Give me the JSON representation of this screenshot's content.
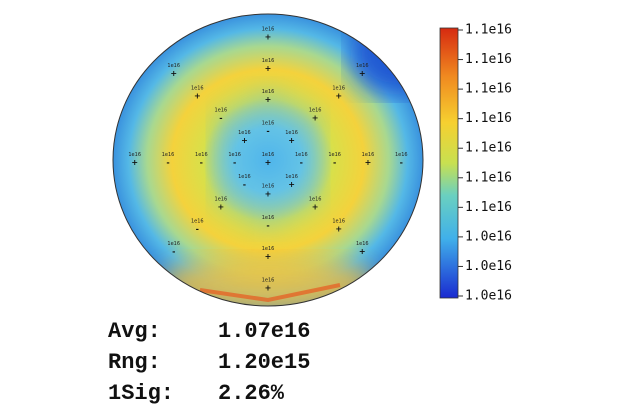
{
  "wafer": {
    "sites": [
      {
        "label": "1e16",
        "sign": "+"
      },
      {
        "label": "1e16",
        "sign": "-"
      },
      {
        "label": "1e16",
        "sign": "+"
      },
      {
        "label": "1e16",
        "sign": "-"
      },
      {
        "label": "1e16",
        "sign": "+"
      },
      {
        "label": "1e16",
        "sign": "-"
      },
      {
        "label": "1e16",
        "sign": "-"
      },
      {
        "label": "1e16",
        "sign": "+"
      },
      {
        "label": "1e16",
        "sign": "+"
      },
      {
        "label": "1e16",
        "sign": "-"
      },
      {
        "label": "1e16",
        "sign": "+"
      },
      {
        "label": "1e16",
        "sign": "+"
      },
      {
        "label": "1e16",
        "sign": "-"
      },
      {
        "label": "1e16",
        "sign": "-"
      },
      {
        "label": "1e16",
        "sign": "+"
      },
      {
        "label": "1e16",
        "sign": "-"
      },
      {
        "label": "1e16",
        "sign": "+"
      },
      {
        "label": "1e16",
        "sign": "+"
      },
      {
        "label": "1e16",
        "sign": "+"
      },
      {
        "label": "1e16",
        "sign": "+"
      },
      {
        "label": "1e16",
        "sign": "+"
      },
      {
        "label": "1e16",
        "sign": "-"
      },
      {
        "label": "1e16",
        "sign": "-"
      },
      {
        "label": "1e16",
        "sign": "+"
      },
      {
        "label": "1e16",
        "sign": "+"
      },
      {
        "label": "1e16",
        "sign": "-"
      },
      {
        "label": "1e16",
        "sign": "+"
      },
      {
        "label": "1e16",
        "sign": "+"
      },
      {
        "label": "1e16",
        "sign": "+"
      },
      {
        "label": "1e16",
        "sign": "+"
      },
      {
        "label": "1e16",
        "sign": "-"
      },
      {
        "label": "1e16",
        "sign": "+"
      },
      {
        "label": "1e16",
        "sign": "+"
      }
    ]
  },
  "colorbar": {
    "labels": [
      "1.1e16",
      "1.1e16",
      "1.1e16",
      "1.1e16",
      "1.1e16",
      "1.1e16",
      "1.1e16",
      "1.0e16",
      "1.0e16",
      "1.0e16"
    ]
  },
  "stats": [
    {
      "label": "Avg:",
      "value": "1.07e16"
    },
    {
      "label": "Rng:",
      "value": "1.20e15"
    },
    {
      "label": "1Sig:",
      "value": "2.26%"
    }
  ]
}
